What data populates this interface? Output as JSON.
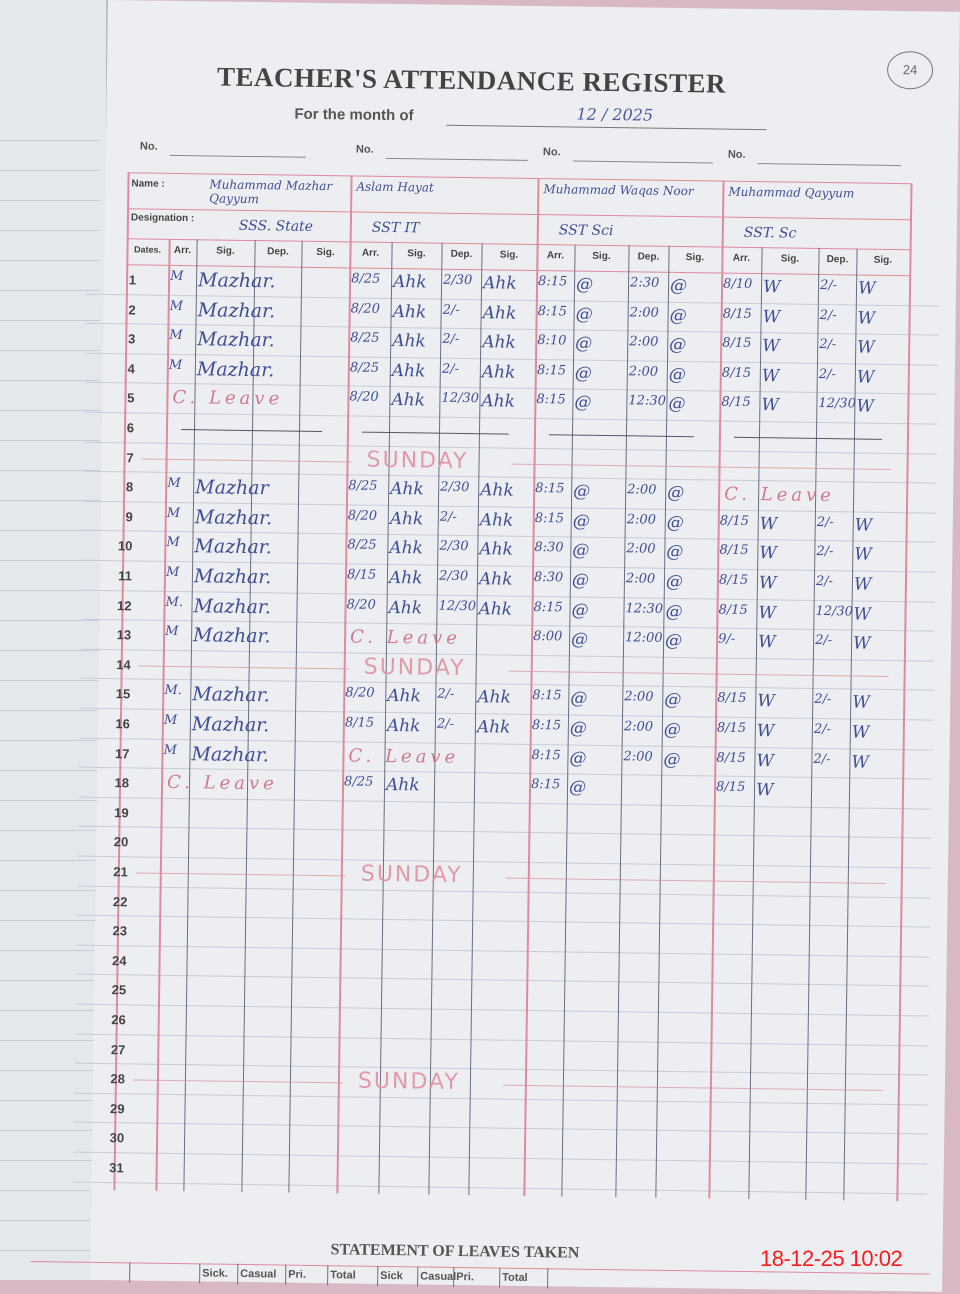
{
  "register": {
    "title": "TEACHER'S ATTENDANCE REGISTER",
    "month_label": "For the month of",
    "month_value": "12 / 2025",
    "page_number": "24",
    "no_label": "No.",
    "name_label": "Name :",
    "designation_label": "Designation :",
    "dates_label": "Dates.",
    "column_headers": [
      "Arr.",
      "Sig.",
      "Dep.",
      "Sig."
    ],
    "teachers": [
      {
        "name": "Muhammad Mazhar Qayyum",
        "designation": "SSS. State"
      },
      {
        "name": "Aslam Hayat",
        "designation": "SST IT"
      },
      {
        "name": "Muhammad Waqas Noor",
        "designation": "SST Sci"
      },
      {
        "name": "Muhammad Qayyum",
        "designation": "SST. Sc"
      }
    ],
    "rows": [
      {
        "day": "1",
        "t": [
          [
            "M",
            "Mazhar.",
            "",
            ""
          ],
          [
            "8/25",
            "Ahk",
            "2/30",
            "Ahk"
          ],
          [
            "8:15",
            "@",
            "2:30",
            "@"
          ],
          [
            "8/10",
            "W",
            "2/-",
            "W"
          ]
        ]
      },
      {
        "day": "2",
        "t": [
          [
            "M",
            "Mazhar.",
            "",
            ""
          ],
          [
            "8/20",
            "Ahk",
            "2/-",
            "Ahk"
          ],
          [
            "8:15",
            "@",
            "2:00",
            "@"
          ],
          [
            "8/15",
            "W",
            "2/-",
            "W"
          ]
        ]
      },
      {
        "day": "3",
        "t": [
          [
            "M",
            "Mazhar.",
            "",
            ""
          ],
          [
            "8/25",
            "Ahk",
            "2/-",
            "Ahk"
          ],
          [
            "8:10",
            "@",
            "2:00",
            "@"
          ],
          [
            "8/15",
            "W",
            "2/-",
            "W"
          ]
        ]
      },
      {
        "day": "4",
        "t": [
          [
            "M",
            "Mazhar.",
            "",
            ""
          ],
          [
            "8/25",
            "Ahk",
            "2/-",
            "Ahk"
          ],
          [
            "8:15",
            "@",
            "2:00",
            "@"
          ],
          [
            "8/15",
            "W",
            "2/-",
            "W"
          ]
        ]
      },
      {
        "day": "5",
        "t": [
          "C. Leave",
          [
            "8/20",
            "Ahk",
            "12/30",
            "Ahk"
          ],
          [
            "8:15",
            "@",
            "12:30",
            "@"
          ],
          [
            "8/15",
            "W",
            "12/30",
            "W"
          ]
        ]
      },
      {
        "day": "6",
        "t": []
      },
      {
        "day": "7",
        "sunday": "SUNDAY",
        "t": []
      },
      {
        "day": "8",
        "t": [
          [
            "M",
            "Mazhar",
            "",
            ""
          ],
          [
            "8/25",
            "Ahk",
            "2/30",
            "Ahk"
          ],
          [
            "8:15",
            "@",
            "2:00",
            "@"
          ],
          "C. Leave"
        ]
      },
      {
        "day": "9",
        "t": [
          [
            "M",
            "Mazhar.",
            "",
            ""
          ],
          [
            "8/20",
            "Ahk",
            "2/-",
            "Ahk"
          ],
          [
            "8:15",
            "@",
            "2:00",
            "@"
          ],
          [
            "8/15",
            "W",
            "2/-",
            "W"
          ]
        ]
      },
      {
        "day": "10",
        "t": [
          [
            "M",
            "Mazhar.",
            "",
            ""
          ],
          [
            "8/25",
            "Ahk",
            "2/30",
            "Ahk"
          ],
          [
            "8:30",
            "@",
            "2:00",
            "@"
          ],
          [
            "8/15",
            "W",
            "2/-",
            "W"
          ]
        ]
      },
      {
        "day": "11",
        "t": [
          [
            "M",
            "Mazhar.",
            "",
            ""
          ],
          [
            "8/15",
            "Ahk",
            "2/30",
            "Ahk"
          ],
          [
            "8:30",
            "@",
            "2:00",
            "@"
          ],
          [
            "8/15",
            "W",
            "2/-",
            "W"
          ]
        ]
      },
      {
        "day": "12",
        "t": [
          [
            "M.",
            "Mazhar.",
            "",
            ""
          ],
          [
            "8/20",
            "Ahk",
            "12/30",
            "Ahk"
          ],
          [
            "8:15",
            "@",
            "12:30",
            "@"
          ],
          [
            "8/15",
            "W",
            "12/30",
            "W"
          ]
        ]
      },
      {
        "day": "13",
        "t": [
          [
            "M",
            "Mazhar.",
            "",
            ""
          ],
          "C. Leave",
          [
            "8:00",
            "@",
            "12:00",
            "@"
          ],
          [
            "9/-",
            "W",
            "2/-",
            "W"
          ]
        ]
      },
      {
        "day": "14",
        "sunday": "SUNDAY",
        "t": []
      },
      {
        "day": "15",
        "t": [
          [
            "M.",
            "Mazhar.",
            "",
            ""
          ],
          [
            "8/20",
            "Ahk",
            "2/-",
            "Ahk"
          ],
          [
            "8:15",
            "@",
            "2:00",
            "@"
          ],
          [
            "8/15",
            "W",
            "2/-",
            "W"
          ]
        ]
      },
      {
        "day": "16",
        "t": [
          [
            "M",
            "Mazhar.",
            "",
            ""
          ],
          [
            "8/15",
            "Ahk",
            "2/-",
            "Ahk"
          ],
          [
            "8:15",
            "@",
            "2:00",
            "@"
          ],
          [
            "8/15",
            "W",
            "2/-",
            "W"
          ]
        ]
      },
      {
        "day": "17",
        "t": [
          [
            "M",
            "Mazhar.",
            "",
            ""
          ],
          "C. Leave",
          [
            "8:15",
            "@",
            "2:00",
            "@"
          ],
          [
            "8/15",
            "W",
            "2/-",
            "W"
          ]
        ]
      },
      {
        "day": "18",
        "t": [
          "C. Leave",
          [
            "8/25",
            "Ahk",
            "",
            ""
          ],
          [
            "8:15",
            "@",
            "",
            ""
          ],
          [
            "8/15",
            "W",
            "",
            ""
          ]
        ]
      },
      {
        "day": "19",
        "t": []
      },
      {
        "day": "20",
        "t": []
      },
      {
        "day": "21",
        "sunday": "SUNDAY",
        "t": []
      },
      {
        "day": "22",
        "t": []
      },
      {
        "day": "23",
        "t": []
      },
      {
        "day": "24",
        "t": []
      },
      {
        "day": "25",
        "t": []
      },
      {
        "day": "26",
        "t": []
      },
      {
        "day": "27",
        "t": []
      },
      {
        "day": "28",
        "sunday": "SUNDAY",
        "t": []
      },
      {
        "day": "29",
        "t": []
      },
      {
        "day": "30",
        "t": []
      },
      {
        "day": "31",
        "t": []
      }
    ]
  },
  "statement": {
    "title": "STATEMENT OF LEAVES TAKEN",
    "headers": [
      "Sick.",
      "Casual",
      "Pri.",
      "Total",
      "Sick",
      "Casual",
      "Pri.",
      "Total"
    ]
  },
  "timestamp": "18-12-25  10:02",
  "colors": {
    "ink_blue": "#3f4f95",
    "ruling_red": "#e08a9c",
    "stamp_red": "#ff1a1a"
  }
}
